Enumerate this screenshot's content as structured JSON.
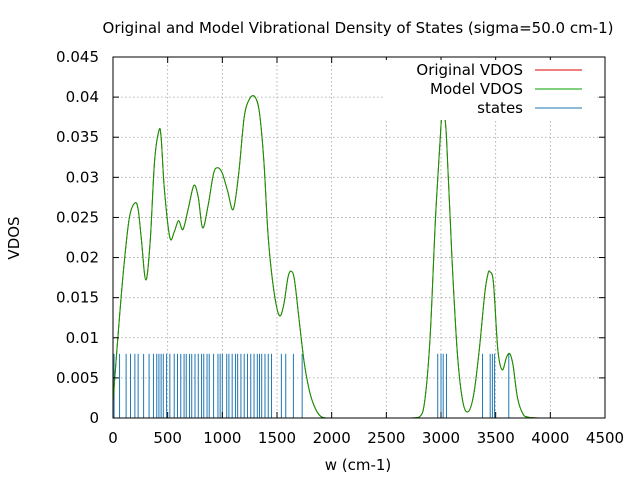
{
  "chart_data": {
    "type": "line",
    "title": "Original and Model Vibrational Density of States (sigma=50.0 cm-1)",
    "xlabel": "w (cm-1)",
    "ylabel": "VDOS",
    "xlim": [
      0,
      4500
    ],
    "ylim": [
      0,
      0.045
    ],
    "x_ticks": [
      0,
      500,
      1000,
      1500,
      2000,
      2500,
      3000,
      3500,
      4000,
      4500
    ],
    "y_ticks": [
      0,
      0.005,
      0.01,
      0.015,
      0.02,
      0.025,
      0.03,
      0.035,
      0.04,
      0.045
    ],
    "grid": true,
    "legend_position": "top-right",
    "series": [
      {
        "name": "Original VDOS",
        "color": "#e00000",
        "x": [
          0,
          50,
          100,
          150,
          200,
          230,
          260,
          300,
          340,
          380,
          420,
          440,
          470,
          520,
          560,
          600,
          640,
          690,
          740,
          780,
          820,
          870,
          920,
          960,
          1000,
          1050,
          1100,
          1150,
          1200,
          1250,
          1300,
          1340,
          1380,
          1420,
          1470,
          1520,
          1560,
          1600,
          1630,
          1660,
          1700,
          1750,
          1800,
          1850,
          1900,
          1950,
          2000,
          2500,
          2700,
          2800,
          2850,
          2900,
          2950,
          3000,
          3020,
          3050,
          3100,
          3150,
          3200,
          3250,
          3300,
          3350,
          3400,
          3430,
          3450,
          3480,
          3520,
          3560,
          3600,
          3630,
          3660,
          3700,
          3750,
          3800,
          3900,
          4300
        ],
        "values": [
          0.002,
          0.011,
          0.019,
          0.025,
          0.0268,
          0.026,
          0.0222,
          0.0172,
          0.022,
          0.032,
          0.0358,
          0.035,
          0.0285,
          0.0225,
          0.0232,
          0.0246,
          0.0235,
          0.0262,
          0.029,
          0.0275,
          0.0237,
          0.0265,
          0.0305,
          0.0312,
          0.0305,
          0.0282,
          0.026,
          0.0305,
          0.0375,
          0.0398,
          0.04,
          0.038,
          0.032,
          0.0225,
          0.016,
          0.0128,
          0.014,
          0.0175,
          0.0183,
          0.0172,
          0.0125,
          0.0068,
          0.0032,
          0.0012,
          0.0002,
          0.0,
          0.0,
          0.0,
          0.0,
          0.0001,
          0.002,
          0.01,
          0.025,
          0.0365,
          0.0383,
          0.035,
          0.02,
          0.008,
          0.002,
          0.0008,
          0.003,
          0.0085,
          0.0155,
          0.018,
          0.0182,
          0.0168,
          0.0085,
          0.006,
          0.0076,
          0.008,
          0.0065,
          0.0025,
          0.0005,
          0.0001,
          0.0,
          0.0
        ]
      },
      {
        "name": "Model VDOS",
        "color": "#00a000",
        "x": [
          0,
          50,
          100,
          150,
          200,
          230,
          260,
          300,
          340,
          380,
          420,
          440,
          470,
          520,
          560,
          600,
          640,
          690,
          740,
          780,
          820,
          870,
          920,
          960,
          1000,
          1050,
          1100,
          1150,
          1200,
          1250,
          1300,
          1340,
          1380,
          1420,
          1470,
          1520,
          1560,
          1600,
          1630,
          1660,
          1700,
          1750,
          1800,
          1850,
          1900,
          1950,
          2000,
          2500,
          2700,
          2800,
          2850,
          2900,
          2950,
          3000,
          3020,
          3050,
          3100,
          3150,
          3200,
          3250,
          3300,
          3350,
          3400,
          3430,
          3450,
          3480,
          3520,
          3560,
          3600,
          3630,
          3660,
          3700,
          3750,
          3800,
          3900,
          4300
        ],
        "values": [
          0.002,
          0.011,
          0.019,
          0.025,
          0.0268,
          0.026,
          0.0222,
          0.0172,
          0.022,
          0.032,
          0.0358,
          0.035,
          0.0285,
          0.0225,
          0.0232,
          0.0246,
          0.0235,
          0.0262,
          0.029,
          0.0275,
          0.0237,
          0.0265,
          0.0305,
          0.0312,
          0.0305,
          0.0282,
          0.026,
          0.0305,
          0.0375,
          0.0398,
          0.04,
          0.038,
          0.032,
          0.0225,
          0.016,
          0.0128,
          0.014,
          0.0175,
          0.0183,
          0.0172,
          0.0125,
          0.0068,
          0.0032,
          0.0012,
          0.0002,
          0.0,
          0.0,
          0.0,
          0.0,
          0.0001,
          0.002,
          0.01,
          0.025,
          0.0365,
          0.0383,
          0.035,
          0.02,
          0.008,
          0.002,
          0.0008,
          0.003,
          0.0085,
          0.0155,
          0.018,
          0.0182,
          0.0168,
          0.0085,
          0.006,
          0.0076,
          0.008,
          0.0065,
          0.0025,
          0.0005,
          0.0001,
          0.0,
          0.0
        ]
      },
      {
        "name": "states",
        "color": "#1f77b4",
        "type": "impulses",
        "height": 0.008,
        "x": [
          10,
          60,
          120,
          160,
          200,
          230,
          280,
          330,
          370,
          400,
          420,
          440,
          460,
          490,
          520,
          560,
          590,
          620,
          650,
          670,
          700,
          720,
          750,
          780,
          810,
          830,
          860,
          880,
          920,
          960,
          980,
          1000,
          1040,
          1060,
          1090,
          1120,
          1140,
          1170,
          1200,
          1230,
          1260,
          1290,
          1320,
          1340,
          1360,
          1390,
          1420,
          1450,
          1540,
          1580,
          1650,
          1730,
          2970,
          3000,
          3020,
          3050,
          3380,
          3450,
          3470,
          3490,
          3620
        ]
      }
    ]
  }
}
